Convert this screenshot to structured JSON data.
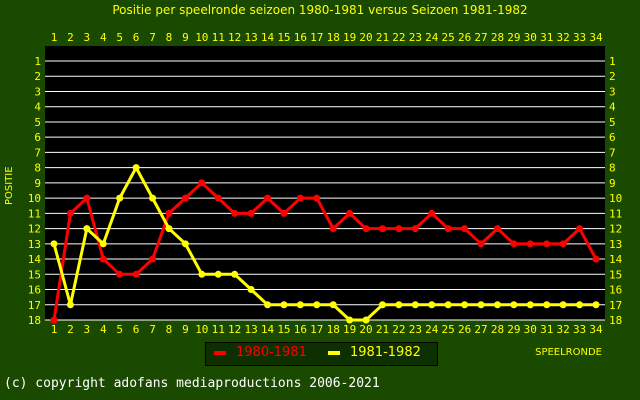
{
  "chart_data": {
    "type": "line",
    "title": "Positie per speelronde seizoen 1980-1981 versus Seizoen 1981-1982",
    "xlabel": "SPEELRONDE",
    "ylabel": "POSITIE",
    "x": [
      1,
      2,
      3,
      4,
      5,
      6,
      7,
      8,
      9,
      10,
      11,
      12,
      13,
      14,
      15,
      16,
      17,
      18,
      19,
      20,
      21,
      22,
      23,
      24,
      25,
      26,
      27,
      28,
      29,
      30,
      31,
      32,
      33,
      34
    ],
    "ylim": [
      18,
      1
    ],
    "y_inverted": true,
    "series": [
      {
        "name": "1980-1981",
        "color": "#ff0000",
        "values": [
          18,
          11,
          10,
          14,
          15,
          15,
          14,
          11,
          10,
          9,
          10,
          11,
          11,
          10,
          11,
          10,
          10,
          12,
          11,
          12,
          12,
          12,
          12,
          11,
          12,
          12,
          13,
          12,
          13,
          13,
          13,
          13,
          12,
          14
        ]
      },
      {
        "name": "1981-1982",
        "color": "#ffff00",
        "values": [
          13,
          17,
          12,
          13,
          10,
          8,
          10,
          12,
          13,
          15,
          15,
          15,
          16,
          17,
          17,
          17,
          17,
          17,
          18,
          18,
          17,
          17,
          17,
          17,
          17,
          17,
          17,
          17,
          17,
          17,
          17,
          17,
          17,
          17
        ]
      }
    ],
    "grid": true,
    "legend_position": "bottom-center"
  },
  "footer": {
    "copyright": "(c) copyright adofans mediaproductions 2006-2021"
  }
}
